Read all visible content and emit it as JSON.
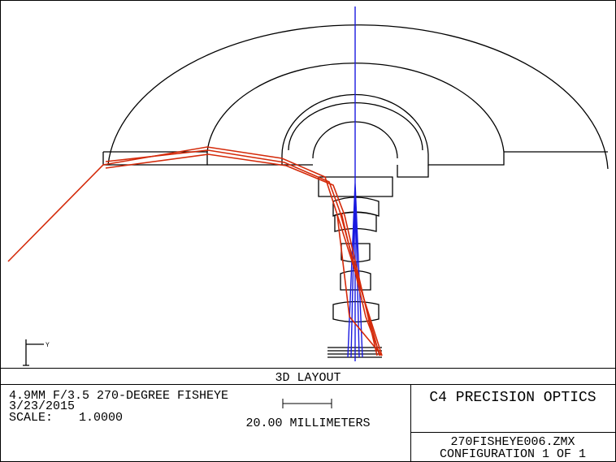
{
  "plot": {
    "title": "3D LAYOUT",
    "axis_label": "Y"
  },
  "info": {
    "description": "4.9MM F/3.5 270-DEGREE FISHEYE",
    "date": "3/23/2015",
    "scale_label": "SCALE:",
    "scale_value": "1.0000",
    "scale_bar": "20.00 MILLIMETERS"
  },
  "company": "C4 PRECISION OPTICS",
  "file": {
    "name": "270FISHEYE006.ZMX",
    "configuration": "CONFIGURATION 1 OF 1"
  }
}
